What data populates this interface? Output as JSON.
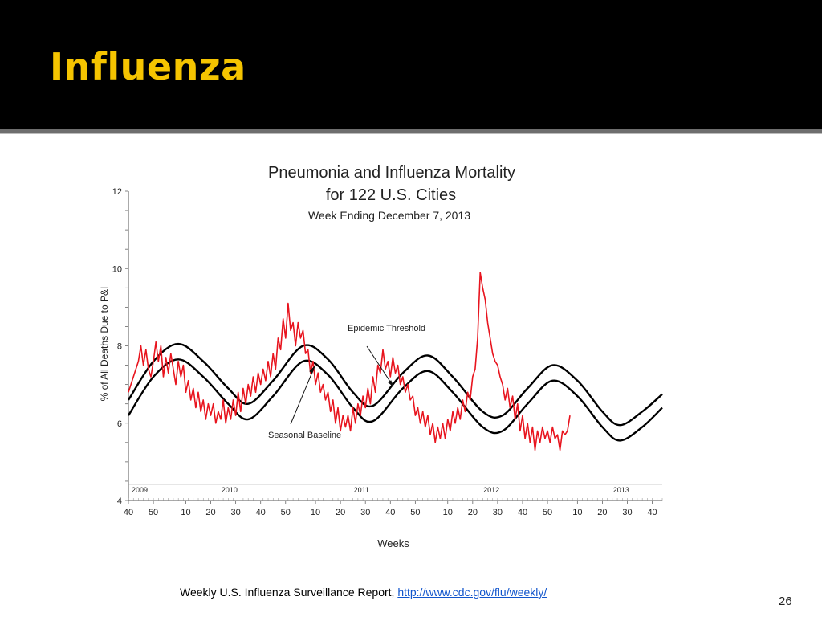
{
  "slide": {
    "title": "Influenza",
    "source_prefix": "Weekly  U.S. Influenza Surveillance Report, ",
    "source_link": "http://www.cdc.gov/flu/weekly/",
    "slide_number": "26",
    "title_color": "#f5c400"
  },
  "chart_data": {
    "type": "line",
    "title": "Pneumonia and Influenza Mortality",
    "title_line2": "for 122 U.S. Cities",
    "subtitle": "Week Ending  December 7, 2013",
    "xlabel": "Weeks",
    "ylabel": "% of All Deaths Due to P&I",
    "ylim": [
      4,
      12
    ],
    "yticks": [
      "4",
      "6",
      "8",
      "10",
      "12"
    ],
    "xtick_labels": [
      "40",
      "50",
      "10",
      "20",
      "30",
      "40",
      "50",
      "10",
      "20",
      "30",
      "40",
      "50",
      "10",
      "20",
      "30",
      "40",
      "50",
      "10",
      "20",
      "30",
      "40"
    ],
    "xtick_weeks": [
      0,
      10,
      23,
      33,
      43,
      53,
      63,
      75,
      85,
      95,
      105,
      115,
      128,
      138,
      148,
      158,
      168,
      180,
      190,
      200,
      210
    ],
    "year_labels": [
      {
        "label": "2009",
        "week": 0
      },
      {
        "label": "2010",
        "week": 36
      },
      {
        "label": "2011",
        "week": 89
      },
      {
        "label": "2012",
        "week": 141
      },
      {
        "label": "2013",
        "week": 193
      }
    ],
    "annotations": [
      {
        "text": "Epidemic Threshold",
        "week": 90,
        "value": 7.0
      },
      {
        "text": "Seasonal Baseline",
        "week": 72,
        "value": 7.6
      }
    ],
    "series": [
      {
        "name": "Epidemic Threshold",
        "color": "#000000",
        "points": [
          [
            0,
            6.6
          ],
          [
            10,
            7.6
          ],
          [
            20,
            8.05
          ],
          [
            30,
            7.6
          ],
          [
            40,
            6.9
          ],
          [
            48,
            6.5
          ],
          [
            58,
            7.1
          ],
          [
            70,
            8.0
          ],
          [
            80,
            7.65
          ],
          [
            90,
            6.8
          ],
          [
            98,
            6.45
          ],
          [
            110,
            7.3
          ],
          [
            120,
            7.75
          ],
          [
            130,
            7.2
          ],
          [
            142,
            6.3
          ],
          [
            150,
            6.2
          ],
          [
            160,
            6.9
          ],
          [
            170,
            7.5
          ],
          [
            180,
            7.1
          ],
          [
            190,
            6.3
          ],
          [
            197,
            5.95
          ],
          [
            206,
            6.3
          ],
          [
            214,
            6.75
          ]
        ]
      },
      {
        "name": "Seasonal Baseline",
        "color": "#000000",
        "points": [
          [
            0,
            6.2
          ],
          [
            10,
            7.2
          ],
          [
            20,
            7.65
          ],
          [
            30,
            7.2
          ],
          [
            40,
            6.5
          ],
          [
            48,
            6.1
          ],
          [
            58,
            6.7
          ],
          [
            70,
            7.6
          ],
          [
            80,
            7.25
          ],
          [
            90,
            6.4
          ],
          [
            98,
            6.05
          ],
          [
            110,
            6.9
          ],
          [
            120,
            7.35
          ],
          [
            130,
            6.8
          ],
          [
            142,
            5.9
          ],
          [
            150,
            5.8
          ],
          [
            160,
            6.5
          ],
          [
            170,
            7.1
          ],
          [
            180,
            6.7
          ],
          [
            190,
            5.9
          ],
          [
            197,
            5.55
          ],
          [
            206,
            5.9
          ],
          [
            214,
            6.4
          ]
        ]
      },
      {
        "name": "P&I Mortality",
        "color": "#e8141e",
        "points": [
          [
            0,
            6.8
          ],
          [
            2,
            7.2
          ],
          [
            4,
            7.6
          ],
          [
            5,
            8.0
          ],
          [
            6,
            7.5
          ],
          [
            7,
            7.9
          ],
          [
            8,
            7.4
          ],
          [
            9,
            7.2
          ],
          [
            10,
            7.6
          ],
          [
            11,
            8.1
          ],
          [
            12,
            7.6
          ],
          [
            13,
            8.0
          ],
          [
            14,
            7.2
          ],
          [
            15,
            7.7
          ],
          [
            16,
            7.3
          ],
          [
            17,
            7.8
          ],
          [
            18,
            7.4
          ],
          [
            19,
            7.0
          ],
          [
            20,
            7.6
          ],
          [
            21,
            7.2
          ],
          [
            22,
            7.5
          ],
          [
            23,
            6.8
          ],
          [
            24,
            7.1
          ],
          [
            25,
            6.6
          ],
          [
            26,
            6.9
          ],
          [
            27,
            6.4
          ],
          [
            28,
            6.8
          ],
          [
            29,
            6.3
          ],
          [
            30,
            6.6
          ],
          [
            31,
            6.1
          ],
          [
            32,
            6.5
          ],
          [
            33,
            6.2
          ],
          [
            34,
            6.5
          ],
          [
            35,
            6.0
          ],
          [
            36,
            6.3
          ],
          [
            37,
            6.1
          ],
          [
            38,
            6.6
          ],
          [
            39,
            6.0
          ],
          [
            40,
            6.4
          ],
          [
            41,
            6.1
          ],
          [
            42,
            6.6
          ],
          [
            43,
            6.2
          ],
          [
            44,
            6.8
          ],
          [
            45,
            6.3
          ],
          [
            46,
            6.9
          ],
          [
            47,
            6.5
          ],
          [
            48,
            7.0
          ],
          [
            49,
            6.7
          ],
          [
            50,
            7.2
          ],
          [
            51,
            6.8
          ],
          [
            52,
            7.3
          ],
          [
            53,
            7.0
          ],
          [
            54,
            7.4
          ],
          [
            55,
            7.1
          ],
          [
            56,
            7.6
          ],
          [
            57,
            7.2
          ],
          [
            58,
            7.8
          ],
          [
            59,
            7.4
          ],
          [
            60,
            8.2
          ],
          [
            61,
            7.9
          ],
          [
            62,
            8.7
          ],
          [
            63,
            8.2
          ],
          [
            64,
            9.1
          ],
          [
            65,
            8.4
          ],
          [
            66,
            8.6
          ],
          [
            67,
            8.0
          ],
          [
            68,
            8.6
          ],
          [
            69,
            8.2
          ],
          [
            70,
            8.4
          ],
          [
            71,
            7.8
          ],
          [
            72,
            7.9
          ],
          [
            73,
            7.3
          ],
          [
            74,
            7.6
          ],
          [
            75,
            7.0
          ],
          [
            76,
            7.3
          ],
          [
            77,
            6.8
          ],
          [
            78,
            7.0
          ],
          [
            79,
            6.6
          ],
          [
            80,
            6.8
          ],
          [
            81,
            6.3
          ],
          [
            82,
            6.6
          ],
          [
            83,
            6.0
          ],
          [
            84,
            6.4
          ],
          [
            85,
            5.8
          ],
          [
            86,
            6.2
          ],
          [
            87,
            5.9
          ],
          [
            88,
            6.2
          ],
          [
            89,
            5.8
          ],
          [
            90,
            6.4
          ],
          [
            91,
            6.0
          ],
          [
            92,
            6.5
          ],
          [
            93,
            6.2
          ],
          [
            94,
            6.7
          ],
          [
            95,
            6.4
          ],
          [
            96,
            6.9
          ],
          [
            97,
            6.5
          ],
          [
            98,
            7.2
          ],
          [
            99,
            6.8
          ],
          [
            100,
            7.5
          ],
          [
            101,
            7.3
          ],
          [
            102,
            7.9
          ],
          [
            103,
            7.4
          ],
          [
            104,
            7.6
          ],
          [
            105,
            7.2
          ],
          [
            106,
            7.7
          ],
          [
            107,
            7.3
          ],
          [
            108,
            7.5
          ],
          [
            109,
            7.0
          ],
          [
            110,
            7.2
          ],
          [
            111,
            6.8
          ],
          [
            112,
            7.0
          ],
          [
            113,
            6.6
          ],
          [
            114,
            6.7
          ],
          [
            115,
            6.2
          ],
          [
            116,
            6.4
          ],
          [
            117,
            6.0
          ],
          [
            118,
            6.3
          ],
          [
            119,
            5.9
          ],
          [
            120,
            6.2
          ],
          [
            121,
            5.7
          ],
          [
            122,
            6.0
          ],
          [
            123,
            5.5
          ],
          [
            124,
            5.9
          ],
          [
            125,
            5.6
          ],
          [
            126,
            6.0
          ],
          [
            127,
            5.6
          ],
          [
            128,
            6.1
          ],
          [
            129,
            5.8
          ],
          [
            130,
            6.3
          ],
          [
            131,
            6.0
          ],
          [
            132,
            6.4
          ],
          [
            133,
            6.1
          ],
          [
            134,
            6.6
          ],
          [
            135,
            6.3
          ],
          [
            136,
            6.8
          ],
          [
            137,
            6.6
          ],
          [
            138,
            7.2
          ],
          [
            139,
            7.4
          ],
          [
            140,
            8.2
          ],
          [
            141,
            9.9
          ],
          [
            142,
            9.5
          ],
          [
            143,
            9.2
          ],
          [
            144,
            8.6
          ],
          [
            145,
            8.2
          ],
          [
            146,
            7.8
          ],
          [
            147,
            7.6
          ],
          [
            148,
            7.5
          ],
          [
            149,
            7.2
          ],
          [
            150,
            7.0
          ],
          [
            151,
            6.6
          ],
          [
            152,
            6.9
          ],
          [
            153,
            6.4
          ],
          [
            154,
            6.7
          ],
          [
            155,
            6.1
          ],
          [
            156,
            6.5
          ],
          [
            157,
            5.8
          ],
          [
            158,
            6.2
          ],
          [
            159,
            5.6
          ],
          [
            160,
            6.0
          ],
          [
            161,
            5.5
          ],
          [
            162,
            5.9
          ],
          [
            163,
            5.3
          ],
          [
            164,
            5.8
          ],
          [
            165,
            5.5
          ],
          [
            166,
            5.9
          ],
          [
            167,
            5.6
          ],
          [
            168,
            5.8
          ],
          [
            169,
            5.5
          ],
          [
            170,
            5.9
          ],
          [
            171,
            5.6
          ],
          [
            172,
            5.7
          ],
          [
            173,
            5.3
          ],
          [
            174,
            5.8
          ],
          [
            175,
            5.7
          ],
          [
            176,
            5.8
          ],
          [
            177,
            6.2
          ]
        ]
      }
    ]
  }
}
